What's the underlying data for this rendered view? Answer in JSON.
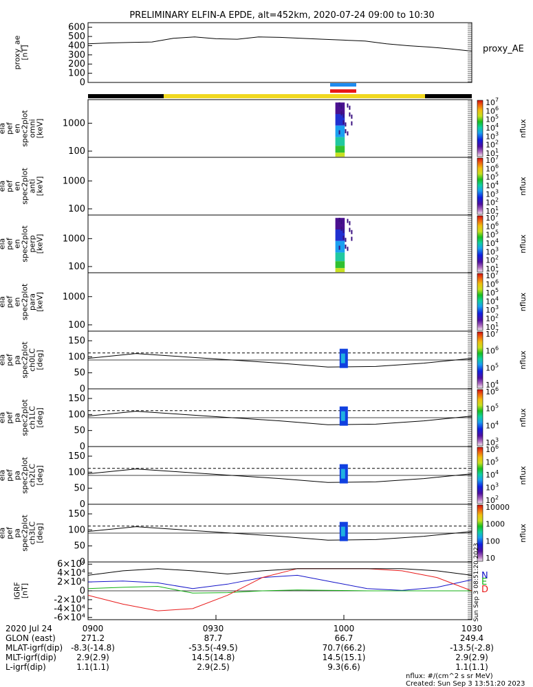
{
  "title": "PRELIMINARY ELFIN-A EPDE, alt=452km, 2020-07-24 09:00 to 10:30",
  "colors": {
    "sci_zone_yellow": "#f0d820",
    "sci_zone_black": "#000000",
    "bar_blue": "#1e8cf0",
    "bar_red": "#e81818",
    "grf_N": "#1010c8",
    "grf_E": "#10b010",
    "grf_D": "#e81818",
    "bg_dark": "#000000"
  },
  "chart_data": [
    {
      "type": "line",
      "panel": "proxy_ae",
      "ylabel_lines": [
        "proxy_ae",
        "[nT]"
      ],
      "right_label": "proxy_AE",
      "ylim": [
        0,
        650
      ],
      "yticks": [
        0,
        100,
        200,
        300,
        400,
        500,
        600
      ],
      "x": [
        "0900",
        "0905",
        "0910",
        "0915",
        "0920",
        "0925",
        "0930",
        "0935",
        "0940",
        "0945",
        "0950",
        "0955",
        "1000",
        "1005",
        "1010",
        "1015",
        "1020",
        "1025",
        "1030"
      ],
      "values": [
        420,
        430,
        435,
        440,
        480,
        495,
        475,
        470,
        495,
        490,
        480,
        470,
        460,
        450,
        420,
        400,
        385,
        365,
        340
      ]
    },
    {
      "type": "heatmap",
      "panel": "ela_pef_en_spec2plot_omni",
      "ylabel_lines": [
        "ela",
        "pef",
        "en",
        "spec2plot",
        "omni",
        "[keV]"
      ],
      "yscale": "log",
      "ylim": [
        60,
        7000
      ],
      "yticks": [
        100,
        1000
      ],
      "colorbar": {
        "label": "nflux",
        "ticks": [
          "10",
          "10",
          "10",
          "10",
          "10",
          "10",
          "10"
        ],
        "exponents": [
          "1",
          "2",
          "3",
          "4",
          "5",
          "6",
          "7"
        ]
      },
      "active_interval": [
        "0958",
        "1002"
      ]
    },
    {
      "type": "heatmap",
      "panel": "ela_pef_en_spec2plot_anti",
      "ylabel_lines": [
        "ela",
        "pef",
        "en",
        "spec2plot",
        "anti",
        "[keV]"
      ],
      "yscale": "log",
      "ylim": [
        60,
        7000
      ],
      "yticks": [
        100,
        1000
      ],
      "colorbar": {
        "label": "nflux",
        "ticks": [
          "10",
          "10",
          "10",
          "10",
          "10",
          "10",
          "10"
        ],
        "exponents": [
          "1",
          "2",
          "3",
          "4",
          "5",
          "6",
          "7"
        ]
      }
    },
    {
      "type": "heatmap",
      "panel": "ela_pef_en_spec2plot_perp",
      "ylabel_lines": [
        "ela",
        "pef",
        "en",
        "spec2plot",
        "perp",
        "[keV]"
      ],
      "yscale": "log",
      "ylim": [
        60,
        7000
      ],
      "yticks": [
        100,
        1000
      ],
      "colorbar": {
        "label": "nflux",
        "ticks": [
          "10",
          "10",
          "10",
          "10",
          "10",
          "10",
          "10"
        ],
        "exponents": [
          "1",
          "2",
          "3",
          "4",
          "5",
          "6",
          "7"
        ]
      },
      "active_interval": [
        "0958",
        "1002"
      ]
    },
    {
      "type": "heatmap",
      "panel": "ela_pef_en_spec2plot_para",
      "ylabel_lines": [
        "ela",
        "pef",
        "en",
        "spec2plot",
        "para",
        "[keV]"
      ],
      "yscale": "log",
      "ylim": [
        60,
        7000
      ],
      "yticks": [
        100,
        1000
      ],
      "colorbar": {
        "label": "nflux",
        "ticks": [
          "10",
          "10",
          "10",
          "10",
          "10",
          "10",
          "10"
        ],
        "exponents": [
          "1",
          "2",
          "3",
          "4",
          "5",
          "6",
          "7"
        ]
      }
    },
    {
      "type": "heatmap",
      "panel": "ela_pef_pa_spec2plot_ch0LC",
      "ylabel_lines": [
        "ela",
        "pef",
        "pa",
        "spec2plot",
        "ch0LC",
        "[deg]"
      ],
      "ylim": [
        0,
        180
      ],
      "yticks": [
        0,
        50,
        100,
        150
      ],
      "colorbar": {
        "label": "nflux",
        "ticks": [
          "10",
          "10",
          "10",
          "10"
        ],
        "exponents": [
          "4",
          "5",
          "6",
          "7"
        ]
      },
      "lc_curve": [
        95,
        110,
        100,
        90,
        80,
        68,
        70,
        80,
        95
      ],
      "dashed_level": 112
    },
    {
      "type": "heatmap",
      "panel": "ela_pef_pa_spec2plot_ch1LC",
      "ylabel_lines": [
        "ela",
        "pef",
        "pa",
        "spec2plot",
        "ch1LC",
        "[deg]"
      ],
      "ylim": [
        0,
        180
      ],
      "yticks": [
        0,
        50,
        100,
        150
      ],
      "colorbar": {
        "label": "nflux",
        "ticks": [
          "10",
          "10",
          "10",
          "10"
        ],
        "exponents": [
          "3",
          "4",
          "5",
          "6"
        ]
      },
      "lc_curve": [
        95,
        110,
        100,
        90,
        80,
        68,
        70,
        80,
        95
      ],
      "dashed_level": 112
    },
    {
      "type": "heatmap",
      "panel": "ela_pef_pa_spec2plot_ch2LC",
      "ylabel_lines": [
        "ela",
        "pef",
        "pa",
        "spec2plot",
        "ch2LC",
        "[deg]"
      ],
      "ylim": [
        0,
        180
      ],
      "yticks": [
        0,
        50,
        100,
        150
      ],
      "colorbar": {
        "label": "nflux",
        "ticks": [
          "10",
          "10",
          "10",
          "10",
          "10"
        ],
        "exponents": [
          "2",
          "3",
          "4",
          "5",
          "6"
        ]
      },
      "lc_curve": [
        95,
        110,
        100,
        90,
        80,
        68,
        70,
        80,
        95
      ],
      "dashed_level": 112
    },
    {
      "type": "heatmap",
      "panel": "ela_pef_pa_spec2plot_ch3LC",
      "ylabel_lines": [
        "ela",
        "pef",
        "pa",
        "spec2plot",
        "ch3LC",
        "[deg]"
      ],
      "ylim": [
        0,
        180
      ],
      "yticks": [
        0,
        50,
        100,
        150
      ],
      "colorbar": {
        "label": "nflux",
        "ticks": [
          "10",
          "100",
          "1000",
          "10000"
        ]
      },
      "lc_curve": [
        95,
        110,
        100,
        90,
        80,
        68,
        70,
        80,
        95
      ],
      "dashed_level": 112
    },
    {
      "type": "line",
      "panel": "IGRF",
      "ylabel_lines": [
        "IGRF",
        "[nT]"
      ],
      "ylim": [
        -65000,
        65000
      ],
      "yticks": [
        "6×10⁴",
        "4×10⁴",
        "2×10⁴",
        "0",
        "-2×10⁴",
        "-4×10⁴",
        "-6×10⁴"
      ],
      "series": [
        {
          "name": "N",
          "values": [
            20000,
            22000,
            18000,
            5000,
            15000,
            30000,
            35000,
            20000,
            5000,
            1000,
            8000,
            25000
          ]
        },
        {
          "name": "E",
          "values": [
            5000,
            8000,
            10000,
            -5000,
            -4000,
            0,
            2000,
            1000,
            0,
            0,
            0,
            0
          ]
        },
        {
          "name": "D",
          "values": [
            -10000,
            -30000,
            -45000,
            -40000,
            -10000,
            30000,
            50000,
            50000,
            50000,
            45000,
            30000,
            0
          ]
        },
        {
          "values": [
            35000,
            45000,
            50000,
            45000,
            38000,
            45000,
            50000,
            50000,
            50000,
            50000,
            45000,
            35000
          ]
        }
      ]
    }
  ],
  "footer": {
    "rows": [
      {
        "label": "2020 Jul 24",
        "values": [
          "0900",
          "0930",
          "1000",
          "1030"
        ]
      },
      {
        "label": "GLON (east)",
        "values": [
          "271.2",
          "87.7",
          "66.7",
          "249.4"
        ]
      },
      {
        "label": "MLAT-igrf(dip)",
        "values": [
          "-8.3(-14.8)",
          "-53.5(-49.5)",
          "70.7(66.2)",
          "-13.5(-2.8)"
        ]
      },
      {
        "label": "MLT-igrf(dip)",
        "values": [
          "2.9(2.9)",
          "14.5(14.8)",
          "14.5(15.1)",
          "2.9(2.9)"
        ]
      },
      {
        "label": "L-igrf(dip)",
        "values": [
          "1.1(1.1)",
          "2.9(2.5)",
          "9.3(6.6)",
          "1.1(1.1)"
        ]
      }
    ],
    "units_note": "nflux: #/(cm^2 s sr MeV)",
    "created": "Created: Sun Sep  3 13:51:20 2023",
    "side_stamp": "Sun Sep  3 08:51:20 2023"
  }
}
